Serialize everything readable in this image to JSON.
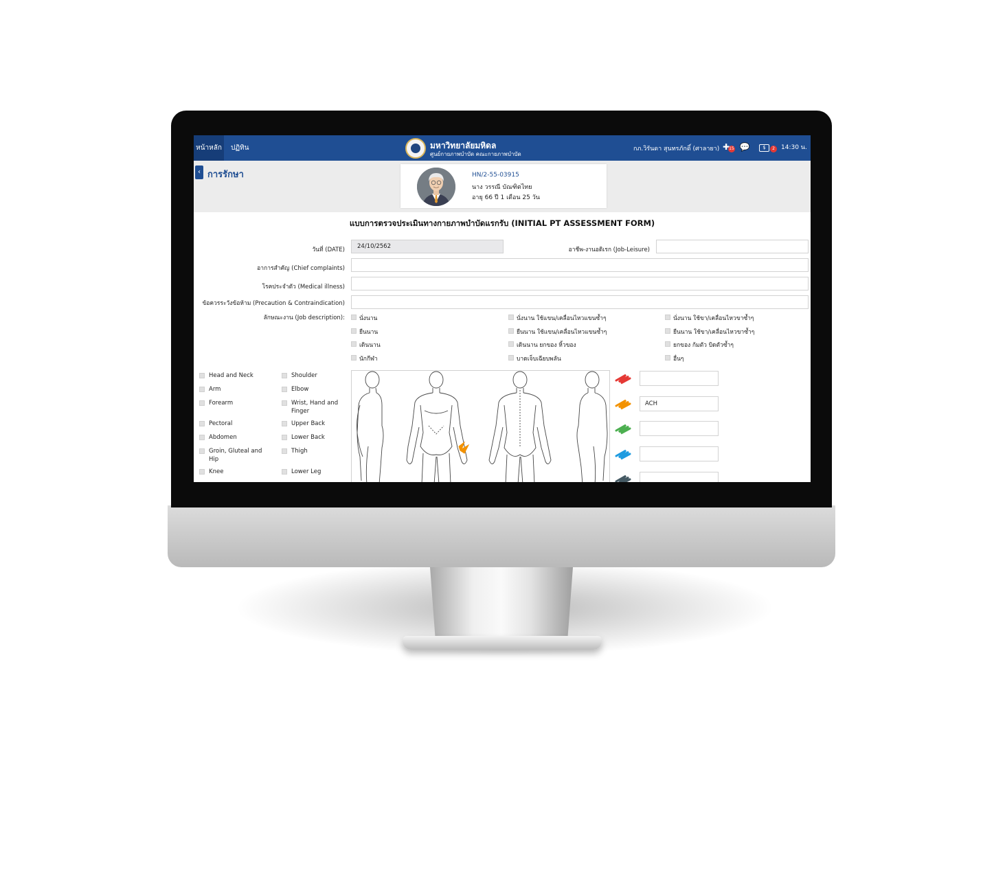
{
  "nav": {
    "home": "หน้าหลัก",
    "calendar": "ปฏิทิน",
    "university": "มหาวิทยาลัยมหิดล",
    "university_sub": "ศูนย์กายภาพบำบัด คณะกายภาพบำบัด",
    "user": "กภ.วิรันดา สุนทรภักดิ์ (ศาลายา)",
    "badge_1": "15",
    "badge_2": "2",
    "time": "14:30 น."
  },
  "page": {
    "section": "การรักษา",
    "form_title": "แบบการตรวจประเมินทางกายภาพบำบัดแรกรับ (INITIAL PT ASSESSMENT FORM)"
  },
  "patient": {
    "hn": "HN/2-55-03915",
    "name": "นาง วรรณี บัณฑิตไทย",
    "age": "อายุ 66 ปี 1 เดือน 25 วัน"
  },
  "form": {
    "date_label": "วันที่ (DATE)",
    "date_value": "24/10/2562",
    "job_label": "อาชีพ-งานอดิเรก (Job-Leisure)",
    "chief_label": "อาการสำคัญ (Chief complaints)",
    "medical_label": "โรคประจำตัว (Medical illness)",
    "precaution_label": "ข้อควรระวังข้อห้าม (Precaution & Contraindication)",
    "jobdesc_label": "ลักษณะงาน (Job description):",
    "job_options": [
      "นั่งนาน",
      "นั่งนาน ใช้แขน/เคลื่อนไหวแขนซ้ำๆ",
      "นั่งนาน ใช้ขา/เคลื่อนไหวขาซ้ำๆ",
      "ยืนนาน",
      "ยืนนาน ใช้แขน/เคลื่อนไหวแขนซ้ำๆ",
      "ยืนนาน ใช้ขา/เคลื่อนไหวขาซ้ำๆ",
      "เดินนาน",
      "เดินนาน ยกของ หิ้วของ",
      "ยกของ ก้มตัว บิดตัวซ้ำๆ",
      "นักกีฬา",
      "บาดเจ็บเฉียบพลัน",
      "อื่นๆ"
    ]
  },
  "body_parts": [
    "Head and Neck",
    "Shoulder",
    "Arm",
    "Elbow",
    "Forearm",
    "Wrist, Hand and Finger",
    "Pectoral",
    "Upper Back",
    "Abdomen",
    "Lower Back",
    "Groin, Gluteal and Hip",
    "Thigh",
    "Knee",
    "Lower Leg"
  ],
  "pain_markers": {
    "colors": [
      "#e53935",
      "#f39200",
      "#4caf50",
      "#1e9be0",
      "#455a64"
    ],
    "values": [
      "",
      "ACH",
      "",
      "",
      ""
    ]
  }
}
